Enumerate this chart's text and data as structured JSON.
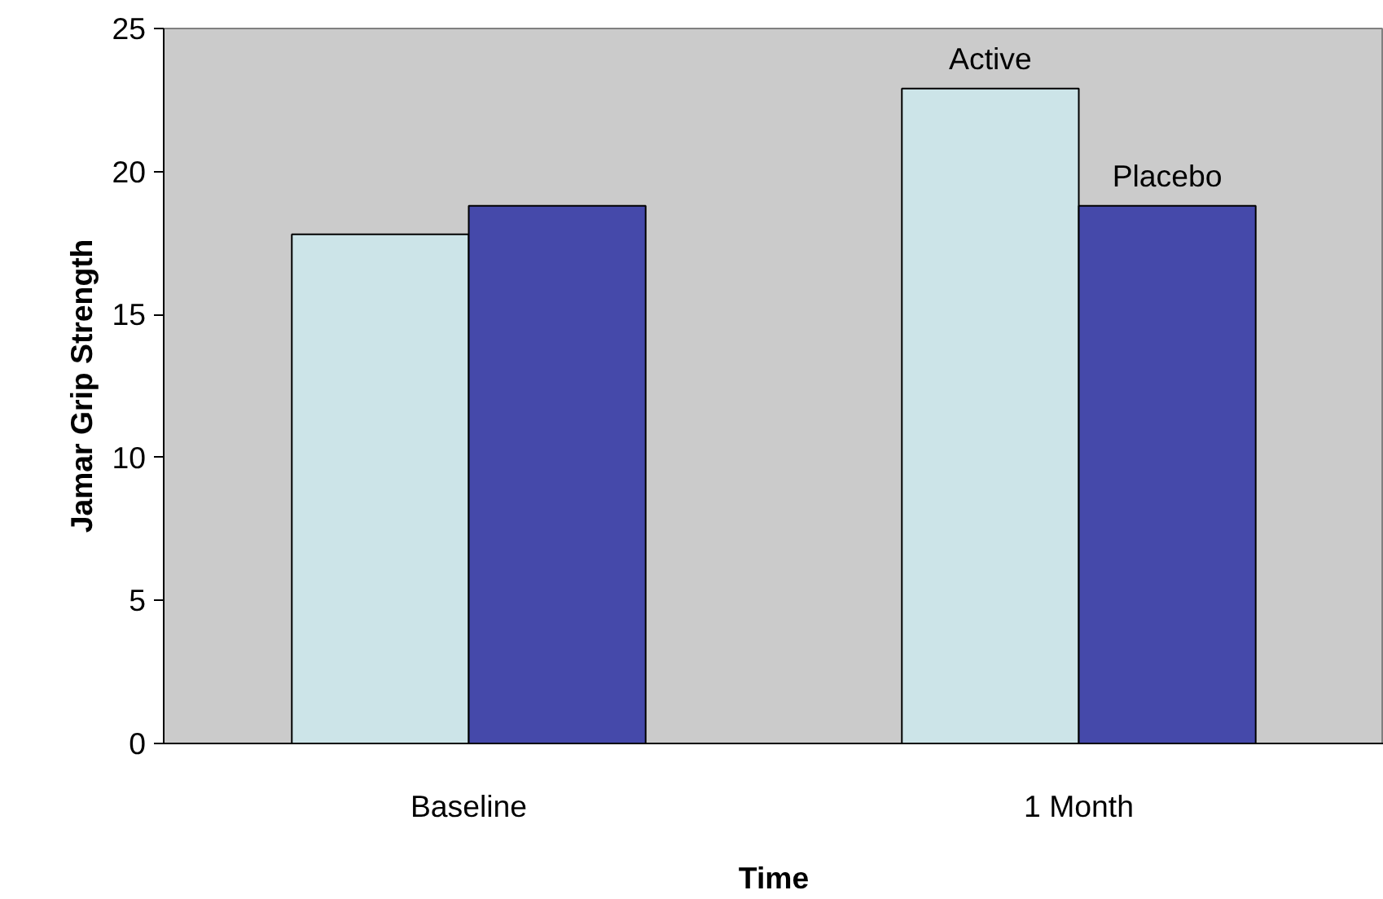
{
  "chart_data": {
    "type": "bar",
    "xlabel": "Time",
    "ylabel": "Jamar Grip Strength",
    "categories": [
      "Baseline",
      "1 Month"
    ],
    "series": [
      {
        "name": "Active",
        "color": "#cce4e8",
        "values": [
          17.8,
          22.9
        ]
      },
      {
        "name": "Placebo",
        "color": "#4549aa",
        "values": [
          18.8,
          18.8
        ]
      }
    ],
    "ylim": [
      0,
      25
    ],
    "yticks": [
      0,
      5,
      10,
      15,
      20,
      25
    ],
    "grid": false
  }
}
